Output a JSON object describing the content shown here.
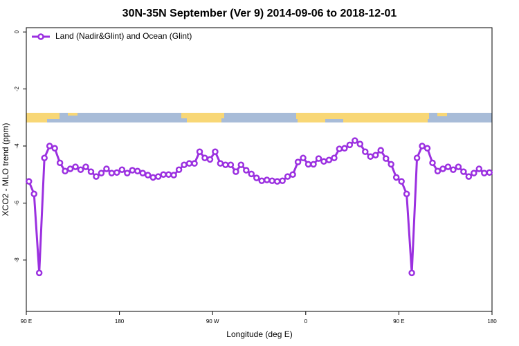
{
  "chart_data": {
    "type": "line",
    "title": "30N-35N September (Ver 9)   2014-09-06 to 2018-12-01",
    "x_label": "Longitude (deg E)",
    "y_label": "XCO2 - MLO trend (ppm)",
    "xlim": [
      90,
      540
    ],
    "ylim": [
      -9.8,
      0.15
    ],
    "xticks": [
      {
        "value": 90,
        "label": "90 E"
      },
      180,
      {
        "value": 270,
        "label": "90 W"
      },
      {
        "value": 360,
        "label": "0"
      },
      {
        "value": 450,
        "label": "90 E"
      },
      {
        "value": 540,
        "label": "180"
      }
    ],
    "yticks": [
      0,
      -2,
      -4,
      -6,
      -8
    ],
    "legend": "top-left",
    "x": [
      92.5,
      97.5,
      102.5,
      107.5,
      112.5,
      117.5,
      122.5,
      127.5,
      132.5,
      137.5,
      142.5,
      147.5,
      152.5,
      157.5,
      162.5,
      167.5,
      172.5,
      177.5,
      182.5,
      187.5,
      192.5,
      197.5,
      202.5,
      207.5,
      212.5,
      217.5,
      222.5,
      227.5,
      232.5,
      237.5,
      242.5,
      247.5,
      252.5,
      257.5,
      262.5,
      267.5,
      272.5,
      277.5,
      282.5,
      287.5,
      292.5,
      297.5,
      302.5,
      307.5,
      312.5,
      317.5,
      322.5,
      327.5,
      332.5,
      337.5,
      342.5,
      347.5,
      352.5,
      357.5,
      362.5,
      367.5,
      372.5,
      377.5,
      382.5,
      387.5,
      392.5,
      397.5,
      402.5,
      407.5,
      412.5,
      417.5,
      422.5,
      427.5,
      432.5,
      437.5,
      442.5,
      447.5,
      452.5,
      457.5,
      462.5,
      467.5,
      472.5,
      477.5,
      482.5,
      487.5,
      492.5,
      497.5,
      502.5,
      507.5,
      512.5,
      517.5,
      522.5,
      527.5,
      532.5,
      537.5
    ],
    "series": [
      {
        "name": "Land (Nadir&Glint) and Ocean (Glint)",
        "color": "#9b30e0",
        "values": [
          -5.24,
          -5.68,
          -8.45,
          -4.42,
          -4.0,
          -4.08,
          -4.59,
          -4.88,
          -4.8,
          -4.73,
          -4.83,
          -4.73,
          -4.9,
          -5.07,
          -4.95,
          -4.8,
          -4.95,
          -4.93,
          -4.83,
          -4.95,
          -4.85,
          -4.88,
          -4.95,
          -5.02,
          -5.1,
          -5.07,
          -5.0,
          -5.0,
          -5.02,
          -4.83,
          -4.66,
          -4.61,
          -4.61,
          -4.2,
          -4.42,
          -4.47,
          -4.2,
          -4.61,
          -4.66,
          -4.66,
          -4.9,
          -4.66,
          -4.85,
          -4.98,
          -5.12,
          -5.22,
          -5.19,
          -5.22,
          -5.24,
          -5.22,
          -5.07,
          -5.0,
          -4.56,
          -4.42,
          -4.64,
          -4.64,
          -4.44,
          -4.54,
          -4.49,
          -4.42,
          -4.1,
          -4.08,
          -3.96,
          -3.81,
          -3.93,
          -4.2,
          -4.37,
          -4.32,
          -4.15,
          -4.44,
          -4.64,
          -5.1,
          -5.24,
          -5.68,
          -8.45,
          -4.42,
          -4.0,
          -4.08,
          -4.59,
          -4.88,
          -4.8,
          -4.73,
          -4.83,
          -4.73,
          -4.9,
          -5.07,
          -4.95,
          -4.8,
          -4.95,
          -4.93
        ]
      }
    ]
  }
}
